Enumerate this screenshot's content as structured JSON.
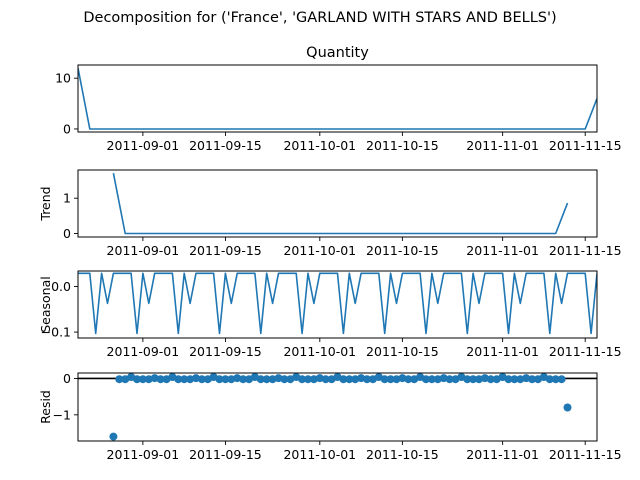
{
  "figure": {
    "title": "Decomposition for ('France', 'GARLAND WITH STARS AND BELLS')",
    "color": "#1f77b4"
  },
  "chart_data": [
    {
      "type": "line",
      "title": "Quantity",
      "ylabel": "",
      "x_range": [
        "2011-08-21",
        "2011-11-17"
      ],
      "ylim": [
        -0.6,
        12.6
      ],
      "yticks": [
        0,
        10
      ],
      "xticks": [
        "2011-09-01",
        "2011-09-15",
        "2011-10-01",
        "2011-10-15",
        "2011-11-01",
        "2011-11-15"
      ],
      "x": [
        "2011-08-21",
        "2011-08-23",
        "2011-11-15",
        "2011-11-17"
      ],
      "values": [
        12,
        0,
        0,
        6
      ]
    },
    {
      "type": "line",
      "title": "",
      "ylabel": "Trend",
      "x_range": [
        "2011-08-21",
        "2011-11-17"
      ],
      "ylim": [
        -0.1,
        1.8
      ],
      "yticks": [
        0,
        1
      ],
      "xticks": [
        "2011-09-01",
        "2011-09-15",
        "2011-10-01",
        "2011-10-15",
        "2011-11-01",
        "2011-11-15"
      ],
      "x": [
        "2011-08-27",
        "2011-08-29",
        "2011-11-10",
        "2011-11-12"
      ],
      "values": [
        1.71,
        0,
        0,
        0.86
      ]
    },
    {
      "type": "line",
      "title": "",
      "ylabel": "Seasonal",
      "x_range": [
        "2011-08-21",
        "2011-11-17"
      ],
      "ylim": [
        -0.113,
        0.034
      ],
      "yticks": [
        -0.1,
        0.0
      ],
      "ytick_labels": [
        "−0.1",
        "0.0"
      ],
      "xticks": [
        "2011-09-01",
        "2011-09-15",
        "2011-10-01",
        "2011-10-15",
        "2011-11-01",
        "2011-11-15"
      ],
      "x_start": "2011-08-21",
      "x_end": "2011-11-17",
      "weekly_pattern": [
        0.029,
        0.029,
        0.029,
        -0.103,
        0.029,
        -0.037,
        0.029
      ]
    },
    {
      "type": "scatter",
      "title": "",
      "ylabel": "Resid",
      "x_range": [
        "2011-08-21",
        "2011-11-17"
      ],
      "ylim": [
        -1.72,
        0.15
      ],
      "yticks": [
        -1,
        0
      ],
      "ytick_labels": [
        "−1",
        "0"
      ],
      "xticks": [
        "2011-09-01",
        "2011-09-15",
        "2011-10-01",
        "2011-10-15",
        "2011-11-01",
        "2011-11-15"
      ],
      "zero_line": true,
      "outliers": [
        {
          "x": "2011-08-27",
          "y": -1.6
        },
        {
          "x": "2011-11-12",
          "y": -0.8
        }
      ],
      "x_start": "2011-08-28",
      "x_end": "2011-11-11",
      "weekly_pattern": [
        -0.02,
        -0.02,
        0.04,
        -0.02,
        -0.02,
        -0.02,
        0.01
      ]
    }
  ]
}
